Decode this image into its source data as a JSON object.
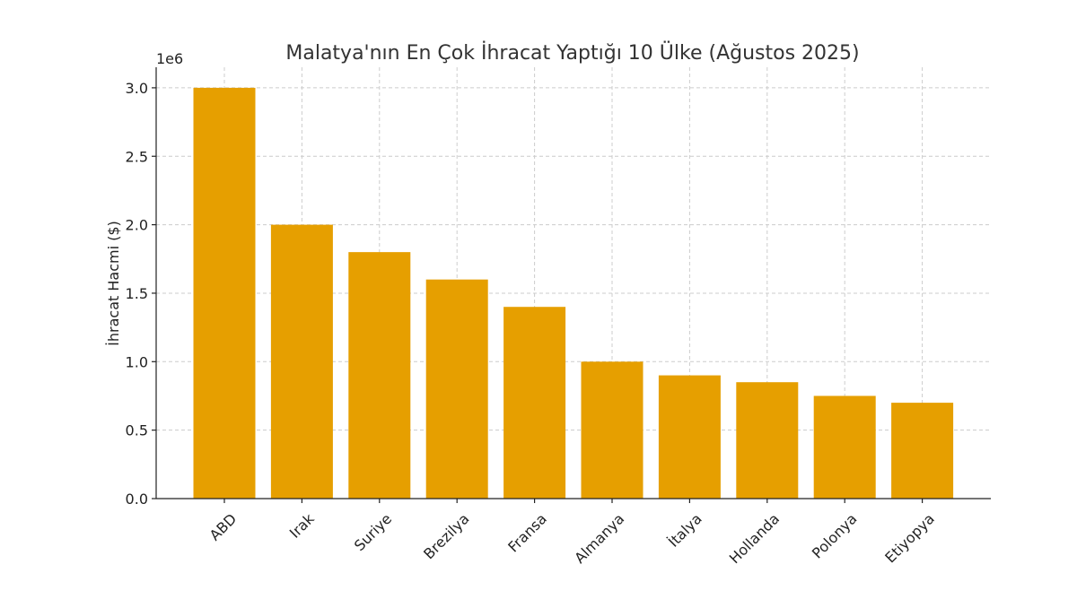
{
  "chart_data": {
    "type": "bar",
    "title": "Malatya'nın En Çok İhracat Yaptığı 10 Ülke (Ağustos 2025)",
    "xlabel": "",
    "ylabel": "İhracat Hacmi ($)",
    "y_multiplier_label": "1e6",
    "categories": [
      "ABD",
      "Irak",
      "Suriye",
      "Brezilya",
      "Fransa",
      "Almanya",
      "İtalya",
      "Hollanda",
      "Polonya",
      "Etiyopya"
    ],
    "values": [
      3000000,
      2000000,
      1800000,
      1600000,
      1400000,
      1000000,
      900000,
      850000,
      750000,
      700000
    ],
    "ylim": [
      0,
      3150000
    ],
    "yticks": [
      0,
      500000,
      1000000,
      1500000,
      2000000,
      2500000,
      3000000
    ],
    "ytick_labels": [
      "0.0",
      "0.5",
      "1.0",
      "1.5",
      "2.0",
      "2.5",
      "3.0"
    ],
    "bar_color": "#E69F00",
    "grid": true,
    "legend": "none"
  }
}
